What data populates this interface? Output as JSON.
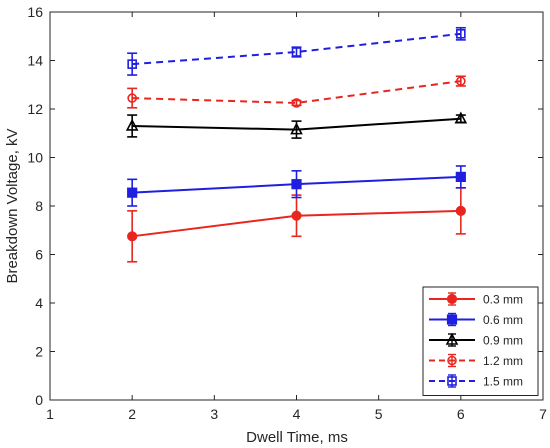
{
  "chart_data": {
    "type": "line",
    "title": "",
    "xlabel": "Dwell Time, ms",
    "ylabel": "Breakdown Voltage, kV",
    "xlim": [
      1,
      7
    ],
    "ylim": [
      0,
      16
    ],
    "xticks": [
      1,
      2,
      3,
      4,
      5,
      6,
      7
    ],
    "yticks": [
      0,
      2,
      4,
      6,
      8,
      10,
      12,
      14,
      16
    ],
    "grid": false,
    "legend_position": "bottom-right",
    "x": [
      2,
      4,
      6
    ],
    "series": [
      {
        "name": "0.3 mm",
        "color": "#e8261f",
        "line_style": "solid",
        "marker": "filled-circle",
        "values": [
          6.75,
          7.6,
          7.8
        ],
        "error": [
          1.05,
          0.85,
          0.95
        ]
      },
      {
        "name": "0.6 mm",
        "color": "#1f1fe0",
        "line_style": "solid",
        "marker": "filled-square",
        "values": [
          8.55,
          8.9,
          9.2
        ],
        "error": [
          0.55,
          0.55,
          0.45
        ]
      },
      {
        "name": "0.9 mm",
        "color": "#000000",
        "line_style": "solid",
        "marker": "open-triangle",
        "values": [
          11.3,
          11.15,
          11.6
        ],
        "error": [
          0.45,
          0.35,
          0.15
        ]
      },
      {
        "name": "1.2 mm",
        "color": "#e8261f",
        "line_style": "dashed",
        "marker": "open-circle",
        "values": [
          12.45,
          12.25,
          13.15
        ],
        "error": [
          0.4,
          0.1,
          0.2
        ]
      },
      {
        "name": "1.5 mm",
        "color": "#1f1fe0",
        "line_style": "dashed",
        "marker": "open-square",
        "values": [
          13.85,
          14.35,
          15.1
        ],
        "error": [
          0.45,
          0.2,
          0.25
        ]
      }
    ]
  }
}
